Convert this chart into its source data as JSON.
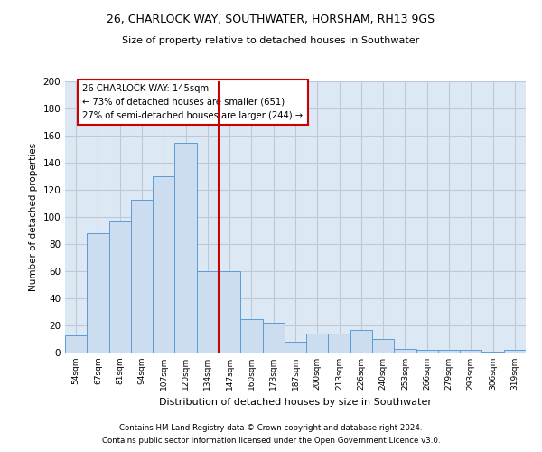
{
  "title1": "26, CHARLOCK WAY, SOUTHWATER, HORSHAM, RH13 9GS",
  "title2": "Size of property relative to detached houses in Southwater",
  "xlabel": "Distribution of detached houses by size in Southwater",
  "ylabel": "Number of detached properties",
  "categories": [
    "54sqm",
    "67sqm",
    "81sqm",
    "94sqm",
    "107sqm",
    "120sqm",
    "134sqm",
    "147sqm",
    "160sqm",
    "173sqm",
    "187sqm",
    "200sqm",
    "213sqm",
    "226sqm",
    "240sqm",
    "253sqm",
    "266sqm",
    "279sqm",
    "293sqm",
    "306sqm",
    "319sqm"
  ],
  "values": [
    13,
    88,
    97,
    113,
    130,
    155,
    60,
    60,
    25,
    22,
    8,
    14,
    14,
    17,
    10,
    3,
    2,
    2,
    2,
    1,
    2
  ],
  "bar_color": "#ccddf0",
  "bar_edge_color": "#5b9bd5",
  "vline_x_index": 6,
  "vline_color": "#cc0000",
  "annotation_text": "26 CHARLOCK WAY: 145sqm\n← 73% of detached houses are smaller (651)\n27% of semi-detached houses are larger (244) →",
  "annotation_box_color": "#ffffff",
  "annotation_box_edge": "#cc0000",
  "ylim": [
    0,
    200
  ],
  "yticks": [
    0,
    20,
    40,
    60,
    80,
    100,
    120,
    140,
    160,
    180,
    200
  ],
  "background_color": "#dde8f5",
  "grid_color": "#c0c8d8",
  "footer1": "Contains HM Land Registry data © Crown copyright and database right 2024.",
  "footer2": "Contains public sector information licensed under the Open Government Licence v3.0."
}
